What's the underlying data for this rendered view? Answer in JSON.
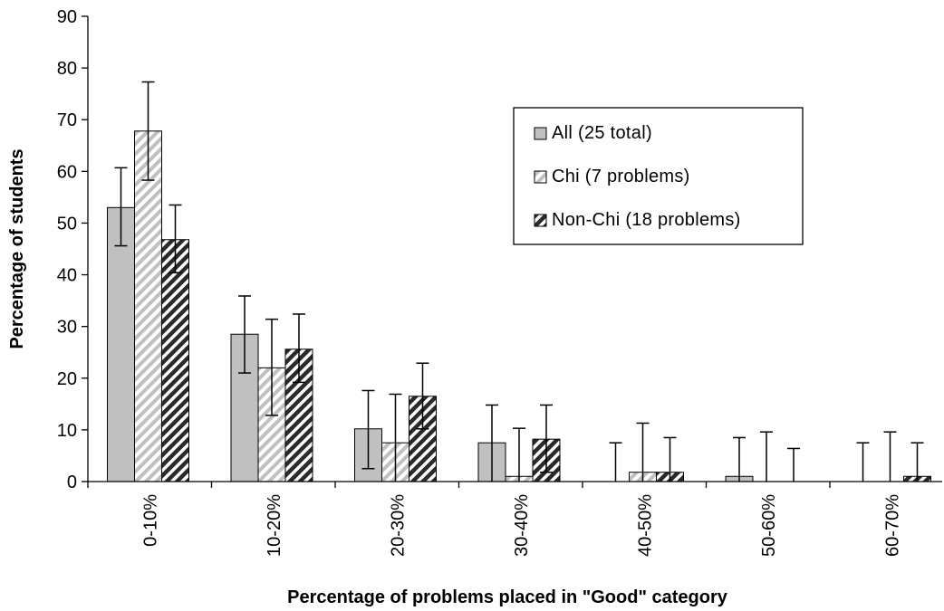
{
  "chart_data": {
    "type": "bar",
    "title": "",
    "xlabel": "Percentage of problems placed in \"Good\" category",
    "ylabel": "Percentage of students",
    "ylim": [
      0,
      90
    ],
    "yticks": [
      0,
      10,
      20,
      30,
      40,
      50,
      60,
      70,
      80,
      90
    ],
    "grid": false,
    "legend_position": "upper-right",
    "categories": [
      "0-10%",
      "10-20%",
      "20-30%",
      "30-40%",
      "40-50%",
      "50-60%",
      "60-70%"
    ],
    "series": [
      {
        "name": "All (25 total)",
        "pattern": "solid",
        "color": "#c0c0c0",
        "values": [
          53,
          28.5,
          10.2,
          7.5,
          0,
          1,
          0
        ],
        "error_upper": [
          60.7,
          35.9,
          17.6,
          14.8,
          7.5,
          8.5,
          7.5
        ],
        "error_lower": [
          45.6,
          21,
          2.5,
          null,
          null,
          null,
          null
        ]
      },
      {
        "name": "Chi (7 problems)",
        "pattern": "light-diagonal",
        "color": "#c0c0c0",
        "values": [
          67.8,
          22,
          7.5,
          1,
          1.8,
          0,
          0
        ],
        "error_upper": [
          77.3,
          31.4,
          16.9,
          10.3,
          11.3,
          9.6,
          9.6
        ],
        "error_lower": [
          58.3,
          12.8,
          null,
          null,
          null,
          null,
          null
        ]
      },
      {
        "name": "Non-Chi (18 problems)",
        "pattern": "dark-diagonal",
        "color": "#2a2a2a",
        "values": [
          46.8,
          25.6,
          16.5,
          8.2,
          1.8,
          0,
          1
        ],
        "error_upper": [
          53.5,
          32.4,
          22.9,
          14.8,
          8.5,
          6.4,
          7.5
        ],
        "error_lower": [
          40.4,
          19.2,
          10.2,
          1.8,
          null,
          null,
          null
        ]
      }
    ]
  }
}
